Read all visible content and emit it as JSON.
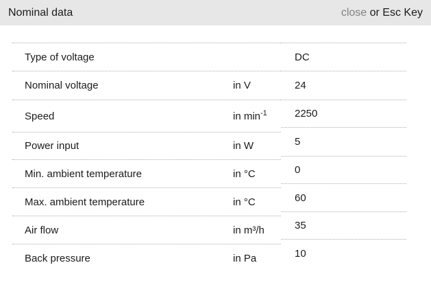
{
  "header": {
    "title": "Nominal data",
    "close_label": "close",
    "close_suffix": " or Esc Key"
  },
  "colors": {
    "header_background": "#e7e7e7",
    "text": "#1b1b1b",
    "close_link": "#818181",
    "dotted_line": "#acacac"
  },
  "table": {
    "rows": [
      {
        "label": "Type of voltage",
        "unit": "",
        "unit_sup": "",
        "value": "DC"
      },
      {
        "label": "Nominal voltage",
        "unit": "in V",
        "unit_sup": "",
        "value": "24"
      },
      {
        "label": "Speed",
        "unit": "in min",
        "unit_sup": "-1",
        "value": "2250"
      },
      {
        "label": "Power input",
        "unit": "in W",
        "unit_sup": "",
        "value": "5"
      },
      {
        "label": "Min. ambient temperature",
        "unit": "in °C",
        "unit_sup": "",
        "value": "0"
      },
      {
        "label": "Max. ambient temperature",
        "unit": "in °C",
        "unit_sup": "",
        "value": "60"
      },
      {
        "label": "Air flow",
        "unit": "in m³/h",
        "unit_sup": "",
        "value": "35"
      },
      {
        "label": "Back pressure",
        "unit": "in Pa",
        "unit_sup": "",
        "value": "10"
      }
    ]
  }
}
